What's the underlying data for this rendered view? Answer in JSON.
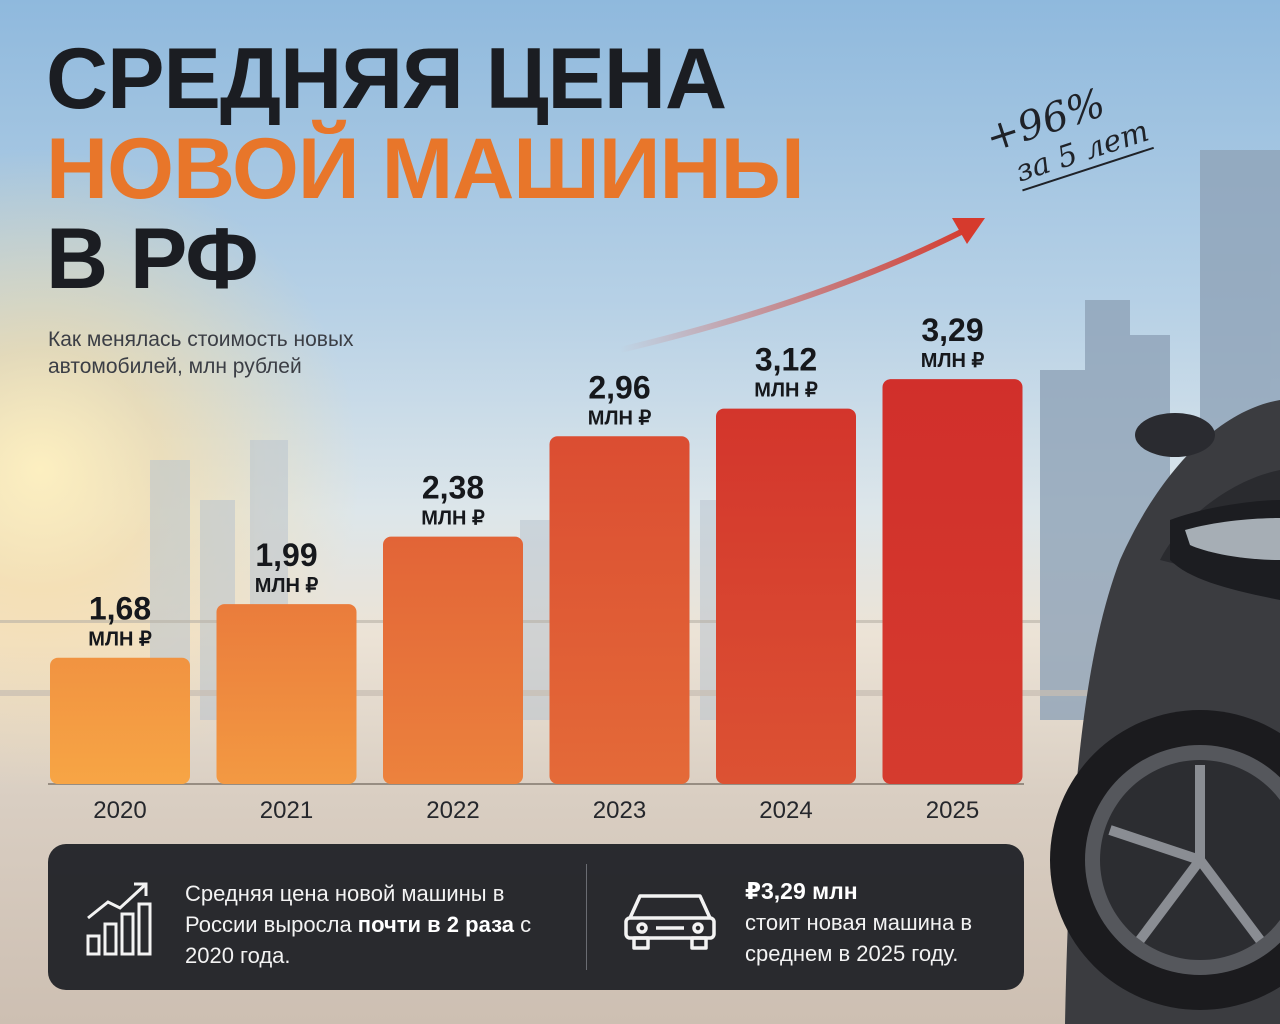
{
  "title": {
    "line1": "СРЕДНЯЯ ЦЕНА",
    "line2": "НОВОЙ МАШИНЫ",
    "line3": "В РФ"
  },
  "subtitle": "Как менялась стоимость новых автомобилей, млн рублей",
  "growth_note": {
    "percent": "+96%",
    "period": "за 5 лет"
  },
  "colors": {
    "title_dark": "#1b1d22",
    "title_accent": "#e8762a",
    "bar_start": "#f7a545",
    "bar_end": "#d12f2b",
    "arrow": "#d63a2d"
  },
  "chart_data": {
    "type": "bar",
    "categories": [
      "2020",
      "2021",
      "2022",
      "2023",
      "2024",
      "2025"
    ],
    "values": [
      1.68,
      1.99,
      2.38,
      2.96,
      3.12,
      3.29
    ],
    "value_labels": [
      "1,68",
      "1,99",
      "2,38",
      "2,96",
      "3,12",
      "3,29"
    ],
    "unit_label": "МЛН ₽",
    "title": "",
    "xlabel": "",
    "ylabel": "",
    "grid": false,
    "legend": "none"
  },
  "info": {
    "left_icon": "growth-chart-icon",
    "left_text_before": "Средняя цена новой машины в России выросла ",
    "left_text_bold": "почти в 2 раза",
    "left_text_after": " с 2020 года.",
    "right_icon": "car-icon",
    "right_value": "₽3,29 млн",
    "right_text": "стоит новая машина в среднем в 2025 году."
  }
}
